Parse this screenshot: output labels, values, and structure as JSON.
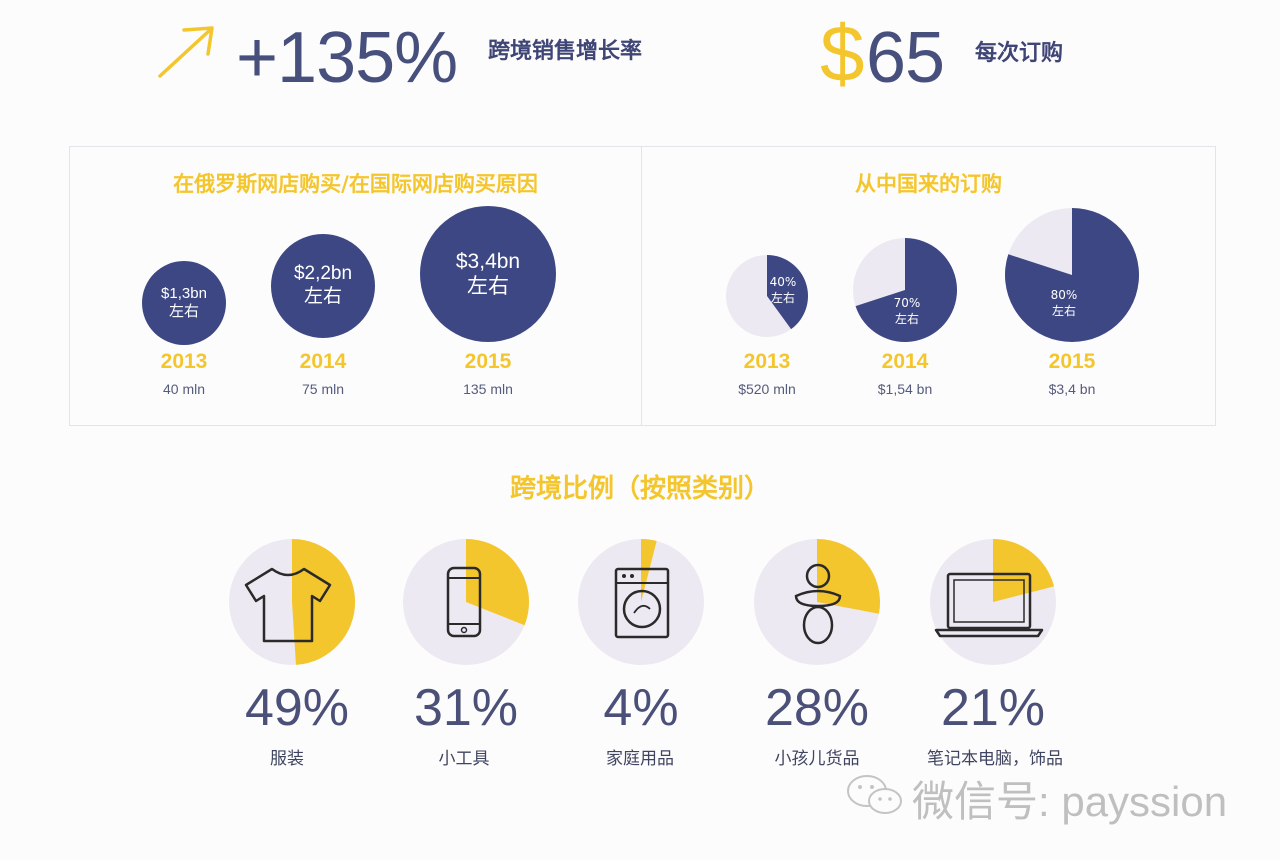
{
  "kpis": {
    "growth_value": "+135%",
    "growth_label": "跨境销售增长率",
    "order_currency": "$",
    "order_value": "65",
    "order_label": "每次订购"
  },
  "left_panel": {
    "title": "在俄罗斯网店购买/在国际网店购买原因",
    "items": [
      {
        "amount": "$1,3bn",
        "approx": "左右",
        "year": "2013",
        "sub": "40 mln"
      },
      {
        "amount": "$2,2bn",
        "approx": "左右",
        "year": "2014",
        "sub": "75 mln"
      },
      {
        "amount": "$3,4bn",
        "approx": "左右",
        "year": "2015",
        "sub": "135 mln"
      }
    ]
  },
  "right_panel": {
    "title": "从中国来的订购",
    "items": [
      {
        "pct": "40%",
        "approx": "左右",
        "year": "2013",
        "sub": "$520 mln"
      },
      {
        "pct": "70%",
        "approx": "左右",
        "year": "2014",
        "sub": "$1,54 bn"
      },
      {
        "pct": "80%",
        "approx": "左右",
        "year": "2015",
        "sub": "$3,4 bn"
      }
    ]
  },
  "categories_section": {
    "title": "跨境比例（按照类别）",
    "items": [
      {
        "pct": "49%",
        "name": "服装",
        "icon": "tshirt-icon"
      },
      {
        "pct": "31%",
        "name": "小工具",
        "icon": "smartphone-icon"
      },
      {
        "pct": "4%",
        "name": "家庭用品",
        "icon": "washing-machine-icon"
      },
      {
        "pct": "28%",
        "name": "小孩儿货品",
        "icon": "pacifier-icon"
      },
      {
        "pct": "21%",
        "name": "笔记本电脑，饰品",
        "icon": "laptop-icon"
      }
    ]
  },
  "watermark": {
    "text": "微信号: payssion"
  },
  "colors": {
    "navy": "#3d4783",
    "yellow": "#f4c62d",
    "pie_bg": "#ede9f2"
  },
  "chart_data": [
    {
      "type": "bubble",
      "title": "在俄罗斯网店购买/在国际网店购买原因",
      "categories": [
        "2013",
        "2014",
        "2015"
      ],
      "series": [
        {
          "name": "",
          "values": [
            1.3,
            2.2,
            3.4
          ],
          "unit": "$bn"
        },
        {
          "name": "",
          "values": [
            40,
            75,
            135
          ],
          "unit": "mln"
        }
      ]
    },
    {
      "type": "pie",
      "title": "从中国来的订购",
      "categories": [
        "2013",
        "2014",
        "2015"
      ],
      "values": [
        40,
        70,
        80
      ],
      "totals": [
        "$520 mln",
        "$1,54 bn",
        "$3,4 bn"
      ]
    },
    {
      "type": "pie",
      "title": "跨境比例（按照类别）",
      "categories": [
        "服装",
        "小工具",
        "家庭用品",
        "小孩儿货品",
        "笔记本电脑，饰品"
      ],
      "values": [
        49,
        31,
        4,
        28,
        21
      ]
    }
  ]
}
